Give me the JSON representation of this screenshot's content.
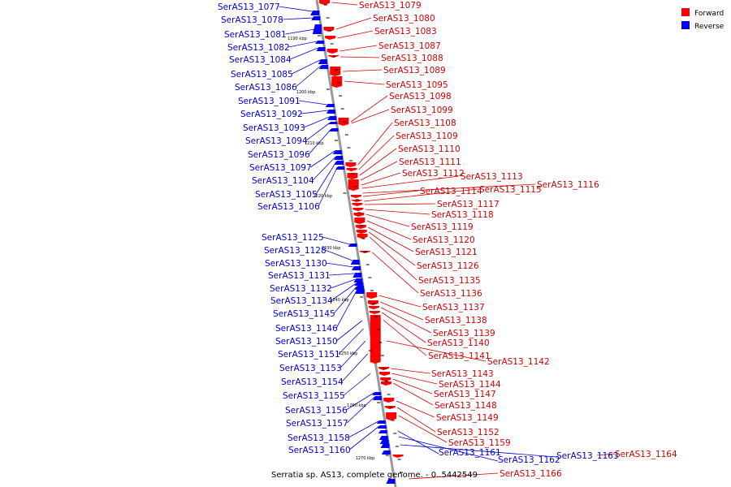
{
  "caption": "Serratia sp. AS13, complete genome. - 0..5442549",
  "colors": {
    "forward": "#ff0000",
    "reverse": "#0000ff",
    "backbone": "#999999",
    "forward_label": "#cc0000",
    "reverse_label": "#0000cc"
  },
  "legend": [
    {
      "label": "Forward",
      "color": "#ff0000"
    },
    {
      "label": "Reverse",
      "color": "#0000ff"
    }
  ],
  "ticks": [
    "1190 kbp",
    "1200 kbp",
    "1210 kbp",
    "1220 kbp",
    "1230 kbp",
    "1240 kbp",
    "1250 kbp",
    "1260 kbp",
    "1270 kbp"
  ],
  "reverse_genes": [
    "SerAS13_1077",
    "SerAS13_1078",
    "SerAS13_1081",
    "SerAS13_1082",
    "SerAS13_1084",
    "SerAS13_1085",
    "SerAS13_1086",
    "SerAS13_1091",
    "SerAS13_1092",
    "SerAS13_1093",
    "SerAS13_1094",
    "SerAS13_1096",
    "SerAS13_1097",
    "SerAS13_1104",
    "SerAS13_1105",
    "SerAS13_1106",
    "SerAS13_1125",
    "SerAS13_1128",
    "SerAS13_1130",
    "SerAS13_1131",
    "SerAS13_1132",
    "SerAS13_1134",
    "SerAS13_1145",
    "SerAS13_1146",
    "SerAS13_1150",
    "SerAS13_1151",
    "SerAS13_1153",
    "SerAS13_1154",
    "SerAS13_1155",
    "SerAS13_1156",
    "SerAS13_1157",
    "SerAS13_1158",
    "SerAS13_1160",
    "SerAS13_1161",
    "SerAS13_1162",
    "SerAS13_1163"
  ],
  "forward_genes": [
    "SerAS13_1079",
    "SerAS13_1080",
    "SerAS13_1083",
    "SerAS13_1087",
    "SerAS13_1088",
    "SerAS13_1089",
    "SerAS13_1095",
    "SerAS13_1098",
    "SerAS13_1099",
    "SerAS13_1108",
    "SerAS13_1109",
    "SerAS13_1110",
    "SerAS13_1111",
    "SerAS13_1112",
    "SerAS13_1113",
    "SerAS13_1116",
    "SerAS13_1114",
    "SerAS13_1115",
    "SerAS13_1117",
    "SerAS13_1118",
    "SerAS13_1119",
    "SerAS13_1120",
    "SerAS13_1121",
    "SerAS13_1126",
    "SerAS13_1135",
    "SerAS13_1136",
    "SerAS13_1137",
    "SerAS13_1138",
    "SerAS13_1139",
    "SerAS13_1140",
    "SerAS13_1141",
    "SerAS13_1142",
    "SerAS13_1143",
    "SerAS13_1144",
    "SerAS13_1147",
    "SerAS13_1148",
    "SerAS13_1149",
    "SerAS13_1152",
    "SerAS13_1159",
    "SerAS13_1164",
    "SerAS13_1166"
  ]
}
